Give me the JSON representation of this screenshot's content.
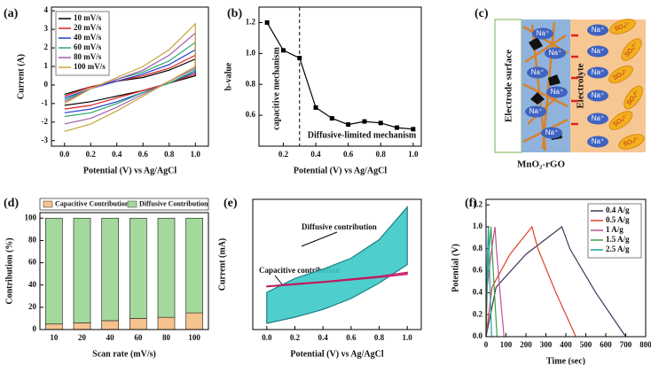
{
  "chart_data": [
    {
      "type": "line",
      "panel": "(a)",
      "x_label": "Potential (V) vs Ag/AgCl",
      "y_label": "Current (A)",
      "x": [
        0,
        0.2,
        0.4,
        0.6,
        0.8,
        1.0,
        1.0,
        0.8,
        0.6,
        0.4,
        0.2,
        0
      ],
      "xlim": [
        -0.1,
        1.1
      ],
      "xticks": [
        {
          "value": 0,
          "label": "0.0"
        },
        0.2,
        0.4,
        0.6,
        0.8,
        {
          "value": 1,
          "label": "1.0"
        }
      ],
      "ylim": [
        -3.3,
        4.2
      ],
      "yticks": [
        -3,
        -2,
        -1,
        0,
        1,
        2,
        3,
        4
      ],
      "legend": "upper left",
      "series": [
        {
          "name": "10 mV/s",
          "color": "#000000",
          "values": [
            -0.5,
            -0.1,
            0.2,
            0.4,
            0.8,
            1.4,
            0.5,
            0.1,
            -0.3,
            -0.6,
            -0.9,
            -1.1
          ]
        },
        {
          "name": "20 mV/s",
          "color": "#e0201b",
          "values": [
            -0.6,
            -0.1,
            0.2,
            0.5,
            0.9,
            1.6,
            0.6,
            0.1,
            -0.3,
            -0.7,
            -1.1,
            -1.3
          ]
        },
        {
          "name": "40 mV/s",
          "color": "#2040d0",
          "values": [
            -0.7,
            -0.2,
            0.2,
            0.6,
            1.1,
            1.9,
            0.7,
            0.1,
            -0.4,
            -0.9,
            -1.3,
            -1.5
          ]
        },
        {
          "name": "60 mV/s",
          "color": "#2aa870",
          "values": [
            -0.8,
            -0.2,
            0.3,
            0.7,
            1.3,
            2.3,
            0.8,
            0.1,
            -0.4,
            -1.0,
            -1.5,
            -1.7
          ]
        },
        {
          "name": "80 mV/s",
          "color": "#a05aa8",
          "values": [
            -0.9,
            -0.2,
            0.3,
            0.8,
            1.6,
            2.8,
            0.9,
            0.2,
            -0.5,
            -1.2,
            -1.8,
            -2.1
          ]
        },
        {
          "name": "100 mV/s",
          "color": "#c9a23c",
          "values": [
            -1.0,
            -0.2,
            0.4,
            1.0,
            1.9,
            3.3,
            1.0,
            0.2,
            -0.6,
            -1.4,
            -2.1,
            -2.5
          ]
        }
      ]
    },
    {
      "type": "line",
      "panel": "(b)",
      "x_label": "Potential (V) vs Ag/AgCl",
      "y_label": "b-value",
      "x": [
        0.1,
        0.2,
        0.3,
        0.4,
        0.5,
        0.6,
        0.7,
        0.8,
        0.9,
        1.0
      ],
      "xlim": [
        0.05,
        1.05
      ],
      "xticks": [
        0.2,
        0.4,
        0.6,
        0.8,
        {
          "value": 1,
          "label": "1.0"
        }
      ],
      "ylim": [
        0.4,
        1.3
      ],
      "yticks": [
        0.6,
        0.8,
        {
          "value": 1,
          "label": "1.0"
        },
        1.2
      ],
      "markers": true,
      "vline": 0.3,
      "annotations": [
        "capacitive mechanism",
        "Diffusive-limited mechanism"
      ],
      "series": [
        {
          "color": "#000000",
          "values": [
            1.2,
            1.02,
            0.97,
            0.65,
            0.58,
            0.54,
            0.56,
            0.55,
            0.52,
            0.51
          ]
        }
      ]
    },
    {
      "type": "bar",
      "panel": "(d)",
      "x_label": "Scan rate (mV/s)",
      "y_label": "Contribution (%)",
      "categories": [
        "10",
        "20",
        "40",
        "60",
        "80",
        "100"
      ],
      "ylim": [
        0,
        105
      ],
      "yticks": [
        0,
        20,
        40,
        60,
        80,
        100
      ],
      "legend": "top",
      "series": [
        {
          "name": "Capacitive Contribution",
          "color": "#f6c28e",
          "values": [
            5,
            6,
            8,
            10,
            11,
            15
          ]
        },
        {
          "name": "Diffusive Contribution",
          "color": "#a3d99c",
          "values": [
            95,
            94,
            92,
            90,
            89,
            85
          ]
        }
      ]
    },
    {
      "type": "line",
      "panel": "(e)",
      "x_label": "Potential (V) vs Ag/AgCl",
      "y_label": "Current (mA)",
      "x": [
        0,
        0.2,
        0.4,
        0.6,
        0.8,
        1.0,
        1.0,
        0.8,
        0.6,
        0.4,
        0.2,
        0
      ],
      "xlim": [
        -0.1,
        1.1
      ],
      "xticks": [
        {
          "value": 0,
          "label": "0.0"
        },
        0.2,
        0.4,
        0.6,
        0.8,
        {
          "value": 1,
          "label": "1.0"
        }
      ],
      "ylim": [
        -1.6,
        2.6
      ],
      "series": [
        {
          "name": "Diffusive contribution",
          "color": "#1a7f80",
          "fill": "#3cc9c9",
          "values": [
            -0.4,
            0.05,
            0.35,
            0.7,
            1.3,
            2.35,
            0.5,
            -0.1,
            -0.6,
            -0.95,
            -1.2,
            -1.4
          ]
        },
        {
          "name": "Capacitive contribution",
          "color": "#c01860",
          "fill": "#e0307a",
          "values": [
            -0.2,
            -0.12,
            -0.05,
            0.03,
            0.12,
            0.25,
            0.18,
            0.08,
            0,
            -0.08,
            -0.15,
            -0.22
          ]
        }
      ]
    },
    {
      "type": "line",
      "panel": "(f)",
      "x_label": "Time (sec)",
      "y_label": "Potential (V)",
      "xlim": [
        0,
        800
      ],
      "xticks": [
        0,
        100,
        200,
        300,
        400,
        500,
        600,
        700,
        800
      ],
      "ylim": [
        0,
        1.25
      ],
      "yticks": [
        {
          "value": 0,
          "label": "0.0"
        },
        0.2,
        0.4,
        0.6,
        0.8,
        {
          "value": 1,
          "label": "1.0"
        },
        1.2
      ],
      "legend": "upper right",
      "series": [
        {
          "name": "0.4 A/g",
          "color": "#3a3a5a",
          "x": [
            0,
            50,
            200,
            380,
            420,
            550,
            700
          ],
          "values": [
            0,
            0.45,
            0.75,
            1.0,
            0.8,
            0.4,
            0
          ]
        },
        {
          "name": "0.5 A/g",
          "color": "#e0402a",
          "x": [
            0,
            30,
            120,
            230,
            260,
            350,
            450
          ],
          "values": [
            0,
            0.45,
            0.75,
            1.0,
            0.8,
            0.4,
            0
          ]
        },
        {
          "name": "1 A/g",
          "color": "#c0509a",
          "x": [
            0,
            6,
            25,
            45,
            52,
            70,
            90
          ],
          "values": [
            0,
            0.45,
            0.75,
            1.0,
            0.8,
            0.4,
            0
          ]
        },
        {
          "name": "1.5 A/g",
          "color": "#40a040",
          "x": [
            0,
            4,
            14,
            25,
            30,
            42,
            55
          ],
          "values": [
            0,
            0.45,
            0.75,
            1.0,
            0.8,
            0.4,
            0
          ]
        },
        {
          "name": "2.5 A/g",
          "color": "#20a0a8",
          "x": [
            0,
            2,
            7,
            12,
            15,
            21,
            28
          ],
          "values": [
            0,
            0.45,
            0.75,
            1.0,
            0.8,
            0.4,
            0
          ]
        }
      ]
    }
  ],
  "schematic": {
    "panel": "(c)",
    "left_label": "Electrode surface",
    "right_label": "Electrolyte",
    "caption": "MnO₂-rGO",
    "cation": "Na⁺",
    "anion": "SO₄²⁻"
  }
}
